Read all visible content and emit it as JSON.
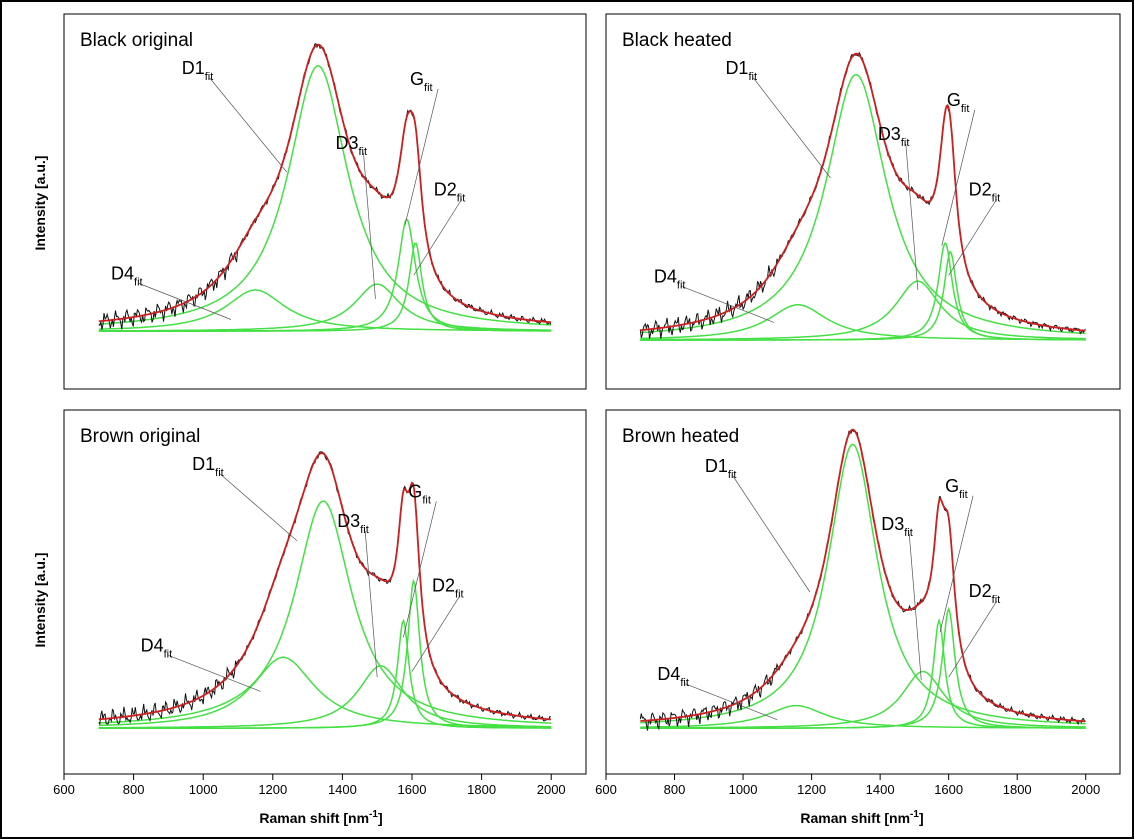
{
  "figure": {
    "y_axis_label": "Intensity [a.u.]",
    "x_axis_label_main": "Raman shift [nm",
    "x_axis_label_sup": "-1",
    "x_axis_label_end": "]"
  },
  "colors": {
    "measured": "#111111",
    "cumulative_fit": "#cc1f1f",
    "component_fit": "#44e044",
    "frame": "#000000"
  },
  "chart_data": [
    {
      "type": "line",
      "title": "Black original",
      "x_range": [
        700,
        2000
      ],
      "xlim": [
        600,
        2100
      ],
      "x_ticks": [
        600,
        800,
        1000,
        1200,
        1400,
        1600,
        1800,
        2000
      ],
      "xlabel": "Raman shift [nm-1]",
      "ylabel": "Intensity [a.u.]",
      "baseline": 0.06,
      "series": [
        {
          "name": "D1fit",
          "center": 1330,
          "height": 0.9,
          "fwhm": 210
        },
        {
          "name": "D2fit",
          "center": 1610,
          "height": 0.3,
          "fwhm": 45
        },
        {
          "name": "D3fit",
          "center": 1500,
          "height": 0.16,
          "fwhm": 160
        },
        {
          "name": "D4fit",
          "center": 1150,
          "height": 0.14,
          "fwhm": 210
        },
        {
          "name": "Gfit",
          "center": 1585,
          "height": 0.38,
          "fwhm": 60
        }
      ],
      "annotations": [
        {
          "label": "D1",
          "sub": "fit",
          "x": 1240,
          "y": 0.6
        },
        {
          "label": "D2",
          "sub": "fit",
          "x": 1605,
          "y": 0.25
        },
        {
          "label": "D3",
          "sub": "fit",
          "x": 1495,
          "y": 0.17
        },
        {
          "label": "D4",
          "sub": "fit",
          "x": 1080,
          "y": 0.1
        },
        {
          "label": "G",
          "sub": "fit",
          "x": 1580,
          "y": 0.42
        }
      ]
    },
    {
      "type": "line",
      "title": "Black heated",
      "x_range": [
        700,
        2000
      ],
      "xlim": [
        600,
        2100
      ],
      "x_ticks": [
        600,
        800,
        1000,
        1200,
        1400,
        1600,
        1800,
        2000
      ],
      "xlabel": "Raman shift [nm-1]",
      "ylabel": "Intensity [a.u.]",
      "baseline": 0.03,
      "series": [
        {
          "name": "D1fit",
          "center": 1330,
          "height": 0.9,
          "fwhm": 215
        },
        {
          "name": "D2fit",
          "center": 1605,
          "height": 0.3,
          "fwhm": 45
        },
        {
          "name": "D3fit",
          "center": 1510,
          "height": 0.2,
          "fwhm": 160
        },
        {
          "name": "D4fit",
          "center": 1160,
          "height": 0.12,
          "fwhm": 210
        },
        {
          "name": "Gfit",
          "center": 1590,
          "height": 0.33,
          "fwhm": 50
        }
      ],
      "annotations": [
        {
          "label": "D1",
          "sub": "fit",
          "x": 1255,
          "y": 0.58
        },
        {
          "label": "D2",
          "sub": "fit",
          "x": 1600,
          "y": 0.25
        },
        {
          "label": "D3",
          "sub": "fit",
          "x": 1510,
          "y": 0.2
        },
        {
          "label": "D4",
          "sub": "fit",
          "x": 1090,
          "y": 0.09
        },
        {
          "label": "G",
          "sub": "fit",
          "x": 1580,
          "y": 0.35
        }
      ]
    },
    {
      "type": "line",
      "title": "Brown original",
      "x_range": [
        700,
        2000
      ],
      "xlim": [
        600,
        2100
      ],
      "x_ticks": [
        600,
        800,
        1000,
        1200,
        1400,
        1600,
        1800,
        2000
      ],
      "xlabel": "Raman shift [nm-1]",
      "ylabel": "Intensity [a.u.]",
      "baseline": 0.02,
      "series": [
        {
          "name": "D1fit",
          "center": 1345,
          "height": 0.8,
          "fwhm": 200
        },
        {
          "name": "D2fit",
          "center": 1605,
          "height": 0.52,
          "fwhm": 42
        },
        {
          "name": "D3fit",
          "center": 1510,
          "height": 0.22,
          "fwhm": 160
        },
        {
          "name": "D4fit",
          "center": 1230,
          "height": 0.25,
          "fwhm": 220
        },
        {
          "name": "Gfit",
          "center": 1575,
          "height": 0.38,
          "fwhm": 40
        }
      ],
      "annotations": [
        {
          "label": "D1",
          "sub": "fit",
          "x": 1270,
          "y": 0.68
        },
        {
          "label": "D2",
          "sub": "fit",
          "x": 1600,
          "y": 0.22
        },
        {
          "label": "D3",
          "sub": "fit",
          "x": 1500,
          "y": 0.2
        },
        {
          "label": "D4",
          "sub": "fit",
          "x": 1165,
          "y": 0.15
        },
        {
          "label": "G",
          "sub": "fit",
          "x": 1575,
          "y": 0.34
        }
      ]
    },
    {
      "type": "line",
      "title": "Brown heated",
      "x_range": [
        700,
        2000
      ],
      "xlim": [
        600,
        2100
      ],
      "x_ticks": [
        600,
        800,
        1000,
        1200,
        1400,
        1600,
        1800,
        2000
      ],
      "xlabel": "Raman shift [nm-1]",
      "ylabel": "Intensity [a.u.]",
      "baseline": 0.02,
      "series": [
        {
          "name": "D1fit",
          "center": 1320,
          "height": 1.0,
          "fwhm": 175
        },
        {
          "name": "D2fit",
          "center": 1600,
          "height": 0.42,
          "fwhm": 45
        },
        {
          "name": "D3fit",
          "center": 1525,
          "height": 0.2,
          "fwhm": 150
        },
        {
          "name": "D4fit",
          "center": 1155,
          "height": 0.08,
          "fwhm": 210
        },
        {
          "name": "Gfit",
          "center": 1572,
          "height": 0.38,
          "fwhm": 40
        }
      ],
      "annotations": [
        {
          "label": "D1",
          "sub": "fit",
          "x": 1195,
          "y": 0.5
        },
        {
          "label": "D2",
          "sub": "fit",
          "x": 1600,
          "y": 0.2
        },
        {
          "label": "D3",
          "sub": "fit",
          "x": 1520,
          "y": 0.19
        },
        {
          "label": "D4",
          "sub": "fit",
          "x": 1100,
          "y": 0.05
        },
        {
          "label": "G",
          "sub": "fit",
          "x": 1575,
          "y": 0.36
        }
      ]
    }
  ]
}
